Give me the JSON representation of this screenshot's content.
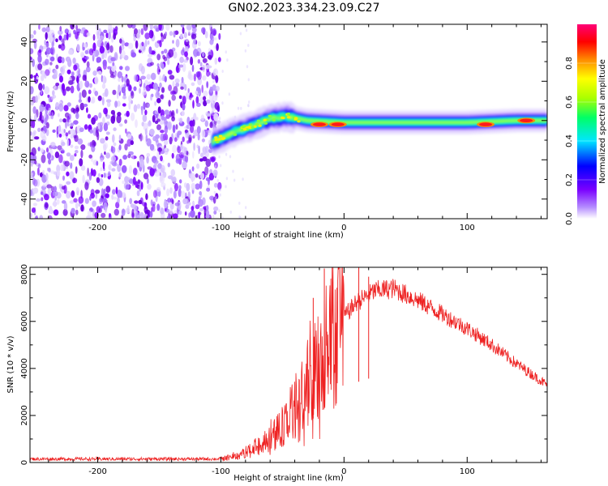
{
  "title": "GN02.2023.334.23.09.C27",
  "chart_data": [
    {
      "type": "heatmap",
      "xlabel": "Height of straight line (km)",
      "ylabel": "Frequency (Hz)",
      "xlim": [
        -255,
        165
      ],
      "ylim": [
        -50,
        49
      ],
      "x_ticks": [
        -200,
        -100,
        0,
        100
      ],
      "x_tick_labels": [
        "-200",
        "-100",
        "0",
        "100"
      ],
      "y_ticks": [
        -40,
        -20,
        0,
        20,
        40
      ],
      "y_tick_labels": [
        "-40",
        "-20",
        "0",
        "20",
        "40"
      ],
      "colorbar": {
        "label": "Normalized spectral amplitude",
        "range": [
          0,
          1
        ],
        "ticks": [
          0,
          0.2,
          0.4,
          0.6,
          0.8
        ],
        "tick_labels": [
          "0.0",
          "0.2",
          "0.4",
          "0.6",
          "0.8"
        ],
        "colors": [
          "#ffffff",
          "#b48cff",
          "#7a00ff",
          "#0000ff",
          "#00e6ff",
          "#00ff66",
          "#aaff00",
          "#ffff00",
          "#ff8800",
          "#ff0000",
          "#ff0077"
        ]
      },
      "noise_region_x": [
        -255,
        -107
      ],
      "signal_ridge": [
        {
          "x": -107,
          "y": -11
        },
        {
          "x": -90,
          "y": -6
        },
        {
          "x": -75,
          "y": -3
        },
        {
          "x": -60,
          "y": 1
        },
        {
          "x": -45,
          "y": 2
        },
        {
          "x": -30,
          "y": 0
        },
        {
          "x": 0,
          "y": -1
        },
        {
          "x": 50,
          "y": -1
        },
        {
          "x": 100,
          "y": -1
        },
        {
          "x": 140,
          "y": 0
        },
        {
          "x": 165,
          "y": 0
        }
      ],
      "hot_spots": [
        {
          "x": -20,
          "y": -2
        },
        {
          "x": -5,
          "y": -2
        },
        {
          "x": 115,
          "y": -2
        },
        {
          "x": 148,
          "y": 0
        }
      ]
    },
    {
      "type": "line",
      "xlabel": "Height of straight line (km)",
      "ylabel": "SNR (10 * v/v)",
      "xlim": [
        -255,
        165
      ],
      "ylim": [
        0,
        8300
      ],
      "x_ticks": [
        -200,
        -100,
        0,
        100
      ],
      "x_tick_labels": [
        "-200",
        "-100",
        "0",
        "100"
      ],
      "y_ticks": [
        0,
        2000,
        4000,
        6000,
        8000
      ],
      "y_tick_labels": [
        "0",
        "2000",
        "4000",
        "6000",
        "8000"
      ],
      "line_color": "#ee2222",
      "envelope": [
        {
          "x": -255,
          "y": 150
        },
        {
          "x": -100,
          "y": 150
        },
        {
          "x": -85,
          "y": 300
        },
        {
          "x": -65,
          "y": 800
        },
        {
          "x": -50,
          "y": 1500
        },
        {
          "x": -35,
          "y": 2600
        },
        {
          "x": -20,
          "y": 4300
        },
        {
          "x": -5,
          "y": 5900
        },
        {
          "x": 10,
          "y": 6800
        },
        {
          "x": 25,
          "y": 7300
        },
        {
          "x": 40,
          "y": 7400
        },
        {
          "x": 60,
          "y": 6900
        },
        {
          "x": 80,
          "y": 6300
        },
        {
          "x": 100,
          "y": 5700
        },
        {
          "x": 120,
          "y": 5000
        },
        {
          "x": 140,
          "y": 4200
        },
        {
          "x": 165,
          "y": 3300
        }
      ],
      "spikes": [
        {
          "x": -16,
          "y": 8250
        },
        {
          "x": 12,
          "y": 8300
        },
        {
          "x": -25,
          "y": 7000
        },
        {
          "x": 20,
          "y": 7900
        }
      ]
    }
  ]
}
